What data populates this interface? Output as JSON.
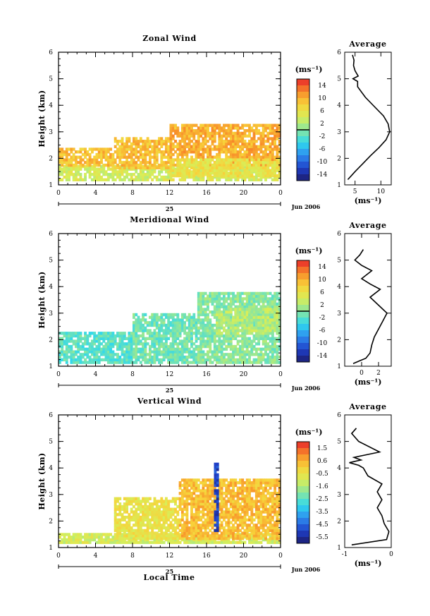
{
  "xlabel": "Local Time",
  "date_label": "Jun 2006",
  "day_label": "25",
  "chart_data": [
    {
      "type": "heatmap",
      "id": "zonal",
      "title": "Zonal Wind",
      "ylabel": "Height (km)",
      "xlim": [
        0,
        24
      ],
      "ylim": [
        1,
        6
      ],
      "x_ticks": [
        "0",
        "4",
        "8",
        "12",
        "16",
        "20",
        "0"
      ],
      "y_ticks": [
        "1",
        "2",
        "3",
        "4",
        "5",
        "6"
      ],
      "colorbar": {
        "unit": "(ms⁻¹)",
        "min": -16,
        "max": 16,
        "tick_labels": [
          "14",
          "10",
          "6",
          "2",
          "-2",
          "-6",
          "-10",
          "-14"
        ],
        "zero_line": 0
      },
      "regions": [
        {
          "x0": 0,
          "x1": 24,
          "y0": 1.15,
          "y1": 1.75,
          "value": 4
        },
        {
          "x0": 0,
          "x1": 6,
          "y0": 1.7,
          "y1": 2.35,
          "value": 9
        },
        {
          "x0": 6,
          "x1": 12,
          "y0": 1.6,
          "y1": 2.8,
          "value": 9
        },
        {
          "x0": 12,
          "x1": 24,
          "y0": 1.7,
          "y1": 3.3,
          "value": 10
        },
        {
          "x0": 12,
          "x1": 24,
          "y0": 1.3,
          "y1": 2.0,
          "value": 6
        }
      ],
      "average_profile": {
        "title": "Average",
        "xlabel": "(ms⁻¹)",
        "xlim": [
          3,
          12
        ],
        "x_ticks": [
          "5",
          "10"
        ],
        "y_ticks": [
          "1",
          "2",
          "3",
          "4",
          "5",
          "6"
        ],
        "x": [
          3.6,
          5.0,
          6.5,
          8.0,
          9.6,
          11.0,
          11.7,
          11.4,
          10.5,
          9.0,
          7.0,
          5.5,
          5.5,
          4.6,
          5.6,
          5.0,
          4.7,
          4.8,
          4.5
        ],
        "y": [
          1.2,
          1.5,
          1.8,
          2.1,
          2.4,
          2.7,
          3.0,
          3.3,
          3.6,
          3.9,
          4.3,
          4.7,
          4.9,
          5.0,
          5.1,
          5.3,
          5.5,
          5.7,
          5.9
        ]
      }
    },
    {
      "type": "heatmap",
      "id": "meridional",
      "title": "Meridional Wind",
      "ylabel": "Height (km)",
      "xlim": [
        0,
        24
      ],
      "ylim": [
        1,
        6
      ],
      "x_ticks": [
        "0",
        "4",
        "8",
        "12",
        "16",
        "20",
        "0"
      ],
      "y_ticks": [
        "1",
        "2",
        "3",
        "4",
        "5",
        "6"
      ],
      "colorbar": {
        "unit": "(ms⁻¹)",
        "min": -16,
        "max": 16,
        "tick_labels": [
          "14",
          "10",
          "6",
          "2",
          "-2",
          "-6",
          "-10",
          "-14"
        ],
        "zero_line": 0
      },
      "regions": [
        {
          "x0": 0,
          "x1": 8,
          "y0": 1.1,
          "y1": 2.3,
          "value": -2
        },
        {
          "x0": 8,
          "x1": 15,
          "y0": 1.1,
          "y1": 3.0,
          "value": -1
        },
        {
          "x0": 15,
          "x1": 24,
          "y0": 1.1,
          "y1": 3.8,
          "value": 0
        },
        {
          "x0": 17,
          "x1": 24,
          "y0": 2.2,
          "y1": 3.2,
          "value": 2
        }
      ],
      "average_profile": {
        "title": "Average",
        "xlabel": "(ms⁻¹)",
        "xlim": [
          -2,
          3.5
        ],
        "x_ticks": [
          "0",
          "2"
        ],
        "y_ticks": [
          "1",
          "2",
          "3",
          "4",
          "5",
          "6"
        ],
        "x": [
          -1.0,
          0.5,
          1.0,
          1.2,
          1.5,
          2.0,
          2.5,
          3.0,
          2.0,
          1.0,
          2.2,
          1.0,
          0.0,
          1.2,
          0.0,
          -0.8,
          -0.2,
          0.2
        ],
        "y": [
          1.1,
          1.3,
          1.5,
          1.8,
          2.1,
          2.4,
          2.7,
          3.0,
          3.3,
          3.6,
          3.9,
          4.1,
          4.3,
          4.6,
          4.8,
          5.0,
          5.2,
          5.4
        ]
      }
    },
    {
      "type": "heatmap",
      "id": "vertical",
      "title": "Vertical Wind",
      "ylabel": "Height (km)",
      "xlim": [
        0,
        24
      ],
      "ylim": [
        1,
        6
      ],
      "x_ticks": [
        "0",
        "4",
        "8",
        "12",
        "16",
        "20",
        "0"
      ],
      "y_ticks": [
        "1",
        "2",
        "3",
        "4",
        "5",
        "6"
      ],
      "colorbar": {
        "unit": "(ms⁻¹)",
        "min": -6,
        "max": 2,
        "tick_labels": [
          "1.5",
          "0.6",
          "-0.5",
          "-1.6",
          "-2.5",
          "-3.5",
          "-4.5",
          "-5.5"
        ],
        "zero_line": null
      },
      "regions": [
        {
          "x0": 0,
          "x1": 24,
          "y0": 1.15,
          "y1": 1.5,
          "value": -1
        },
        {
          "x0": 6,
          "x1": 13,
          "y0": 1.3,
          "y1": 2.9,
          "value": -0.5
        },
        {
          "x0": 13,
          "x1": 24,
          "y0": 1.3,
          "y1": 3.6,
          "value": 0.3
        },
        {
          "x0": 16.8,
          "x1": 17.2,
          "y0": 1.6,
          "y1": 4.2,
          "value": -5
        }
      ],
      "average_profile": {
        "title": "Average",
        "xlabel": "(ms⁻¹)",
        "xlim": [
          -1,
          0
        ],
        "x_ticks": [
          "-1",
          "0"
        ],
        "y_ticks": [
          "1",
          "2",
          "3",
          "4",
          "5",
          "6"
        ],
        "x": [
          -0.85,
          -0.1,
          -0.05,
          -0.15,
          -0.2,
          -0.3,
          -0.2,
          -0.3,
          -0.2,
          -0.5,
          -0.6,
          -0.7,
          -0.9,
          -0.65,
          -0.8,
          -0.25,
          -0.7,
          -0.85,
          -0.75
        ],
        "y": [
          1.1,
          1.3,
          1.6,
          1.9,
          2.2,
          2.5,
          2.8,
          3.1,
          3.4,
          3.7,
          4.0,
          4.1,
          4.2,
          4.3,
          4.4,
          4.6,
          5.0,
          5.3,
          5.5
        ]
      }
    }
  ]
}
